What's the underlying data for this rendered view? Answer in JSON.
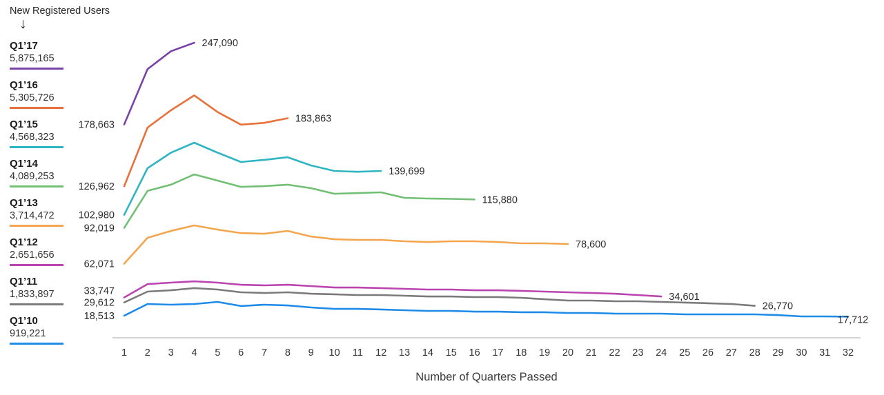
{
  "title": "New Registered Users",
  "icons": {
    "down_arrow": "↓"
  },
  "chart_data": {
    "type": "line",
    "title": "New Registered Users",
    "xlabel": "Number of Quarters Passed",
    "x_ticks": [
      1,
      2,
      3,
      4,
      5,
      6,
      7,
      8,
      9,
      10,
      11,
      12,
      13,
      14,
      15,
      16,
      17,
      18,
      19,
      20,
      21,
      22,
      23,
      24,
      25,
      26,
      27,
      28,
      29,
      30,
      31,
      32
    ],
    "xlim": [
      1,
      32
    ],
    "ylim": [
      0,
      260000
    ],
    "grid": false,
    "legend_position": "left",
    "series": [
      {
        "name": "Q1’17",
        "cohort_size": "5,875,165",
        "color": "#7a42a8",
        "start_label": "178,663",
        "end_label": "247,090",
        "values": [
          178663,
          225000,
          240000,
          247090
        ]
      },
      {
        "name": "Q1’16",
        "cohort_size": "5,305,726",
        "color": "#e8703a",
        "start_label": "126,962",
        "end_label": "183,863",
        "values": [
          126962,
          176000,
          190500,
          203000,
          189000,
          178500,
          180000,
          183863
        ]
      },
      {
        "name": "Q1’15",
        "cohort_size": "4,568,323",
        "color": "#2fb5c2",
        "start_label": "102,980",
        "end_label": "139,699",
        "values": [
          102980,
          142000,
          155000,
          163400,
          155000,
          147200,
          149000,
          151200,
          144300,
          139700,
          139000,
          139699
        ]
      },
      {
        "name": "Q1’14",
        "cohort_size": "4,089,253",
        "color": "#70bf73",
        "start_label": "92,019",
        "end_label": "115,880",
        "values": [
          92019,
          123000,
          128200,
          136800,
          131600,
          126400,
          127000,
          128200,
          125300,
          120600,
          121200,
          121800,
          117200,
          116600,
          116300,
          115880
        ]
      },
      {
        "name": "Q1’13",
        "cohort_size": "3,714,472",
        "color": "#f3a64d",
        "start_label": "62,071",
        "end_label": "78,600",
        "values": [
          62071,
          83700,
          89500,
          94100,
          90600,
          87700,
          87100,
          89500,
          84800,
          82500,
          82000,
          82000,
          80800,
          80200,
          80800,
          80800,
          80200,
          79100,
          79100,
          78600
        ]
      },
      {
        "name": "Q1’12",
        "cohort_size": "2,651,656",
        "color": "#ba44b0",
        "start_label": "33,747",
        "end_label": "34,601",
        "values": [
          33747,
          45000,
          46200,
          47300,
          46200,
          44400,
          43900,
          44400,
          43300,
          42100,
          42100,
          41600,
          41000,
          40400,
          40400,
          39800,
          39800,
          39300,
          38700,
          38100,
          37500,
          36900,
          35800,
          34601
        ]
      },
      {
        "name": "Q1’11",
        "cohort_size": "1,833,897",
        "color": "#7a7a7a",
        "start_label": "29,612",
        "end_label": "26,770",
        "values": [
          29612,
          38700,
          39800,
          41600,
          40400,
          38100,
          37500,
          38100,
          36900,
          36400,
          35800,
          35800,
          35200,
          34600,
          34600,
          34100,
          34100,
          33500,
          32300,
          31200,
          31200,
          30600,
          30600,
          30000,
          29500,
          28900,
          28300,
          26770
        ]
      },
      {
        "name": "Q1’10",
        "cohort_size": "919,221",
        "color": "#1f8be8",
        "start_label": "18,513",
        "end_label": "17,712",
        "values": [
          18513,
          28300,
          27700,
          28300,
          30000,
          26600,
          27700,
          27100,
          25400,
          24200,
          24200,
          23700,
          23100,
          22500,
          22500,
          21900,
          21900,
          21400,
          21400,
          20800,
          20800,
          20200,
          20200,
          20200,
          19600,
          19600,
          19600,
          19600,
          19000,
          17900,
          17900,
          17712
        ]
      }
    ]
  }
}
